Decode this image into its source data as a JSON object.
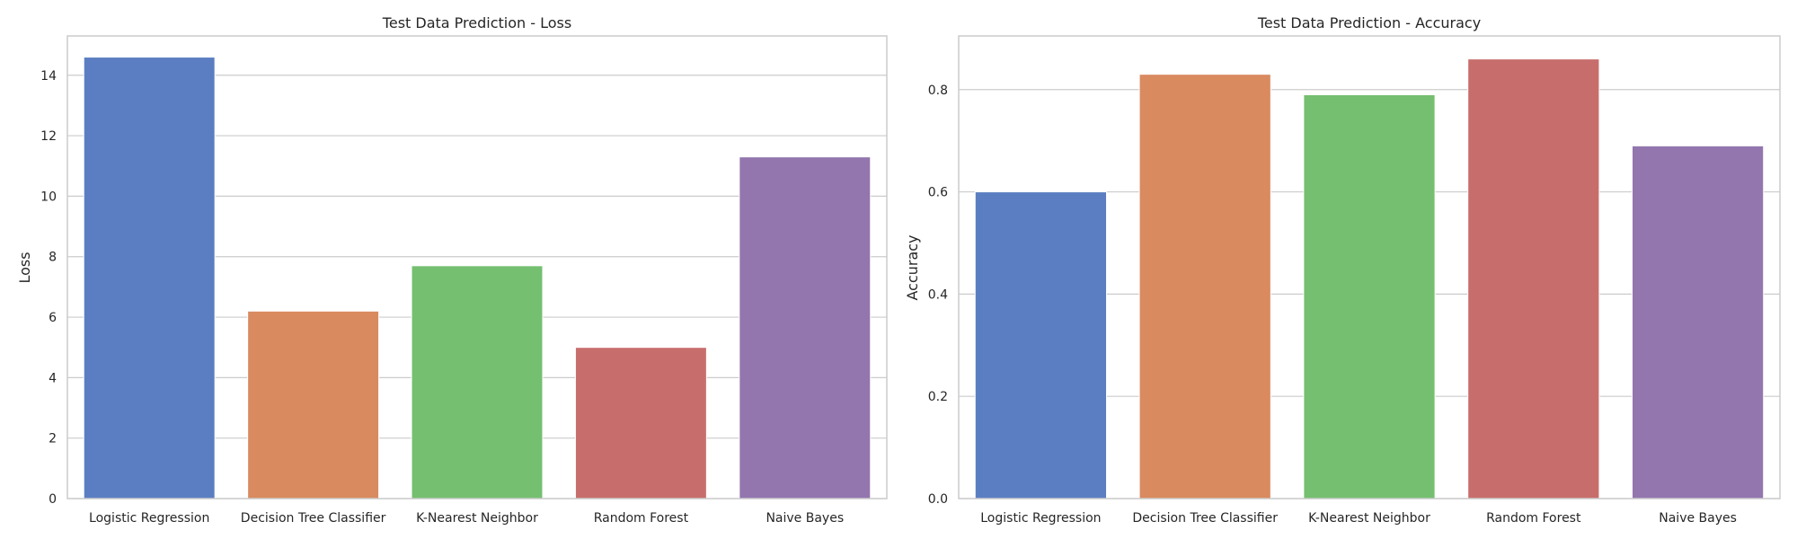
{
  "chart_data": [
    {
      "type": "bar",
      "title": "Test Data Prediction - Loss",
      "xlabel": "",
      "ylabel": "Loss",
      "categories": [
        "Logistic Regression",
        "Decision Tree Classifier",
        "K-Nearest Neighbor",
        "Random Forest",
        "Naive Bayes"
      ],
      "values": [
        14.6,
        6.2,
        7.7,
        5.0,
        11.3
      ],
      "ylim": [
        0,
        15.3
      ],
      "yticks": [
        0,
        2,
        4,
        6,
        8,
        10,
        12,
        14
      ],
      "ytick_labels": [
        "0",
        "2",
        "4",
        "6",
        "8",
        "10",
        "12",
        "14"
      ],
      "colors": [
        "#5b7ec2",
        "#d98a5f",
        "#75bf70",
        "#c76e6c",
        "#9376ae"
      ],
      "grid": "horizontal",
      "legend": "none"
    },
    {
      "type": "bar",
      "title": "Test Data Prediction - Accuracy",
      "xlabel": "",
      "ylabel": "Accuracy",
      "categories": [
        "Logistic Regression",
        "Decision Tree Classifier",
        "K-Nearest Neighbor",
        "Random Forest",
        "Naive Bayes"
      ],
      "values": [
        0.6,
        0.83,
        0.79,
        0.86,
        0.69
      ],
      "ylim": [
        0,
        0.905
      ],
      "yticks": [
        0.0,
        0.2,
        0.4,
        0.6,
        0.8
      ],
      "ytick_labels": [
        "0.0",
        "0.2",
        "0.4",
        "0.6",
        "0.8"
      ],
      "colors": [
        "#5b7ec2",
        "#d98a5f",
        "#75bf70",
        "#c76e6c",
        "#9376ae"
      ],
      "grid": "horizontal",
      "legend": "none"
    }
  ]
}
